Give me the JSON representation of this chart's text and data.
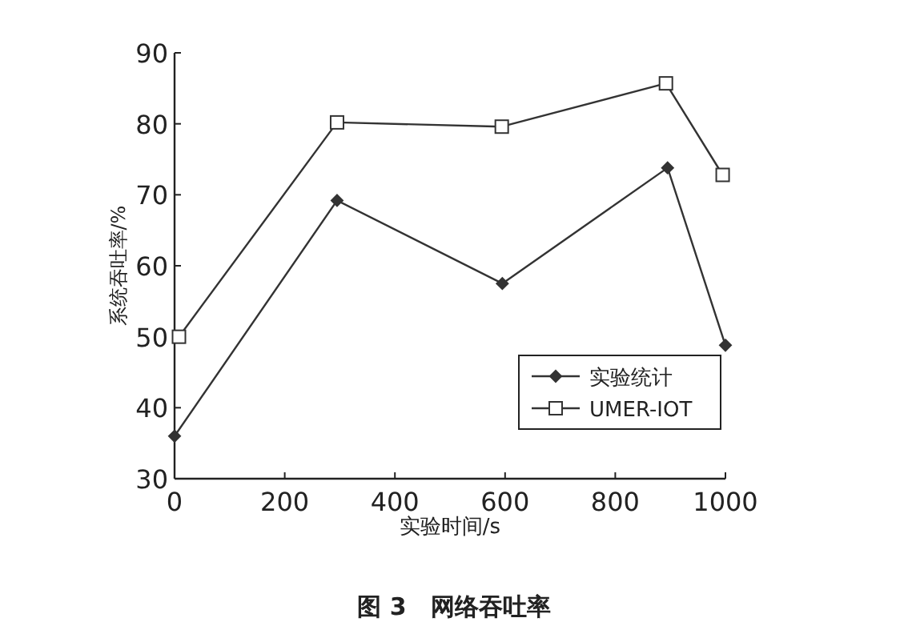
{
  "chart_data": {
    "type": "line",
    "xlabel": "实验时间/s",
    "ylabel": "系统吞吐率/%",
    "annotations": [
      "图 3　网络吞吐率"
    ],
    "xlim": [
      0,
      1000
    ],
    "xticks": [
      0,
      200,
      400,
      600,
      800,
      1000
    ],
    "ylim": [
      30,
      90
    ],
    "yticks": [
      30,
      40,
      50,
      60,
      70,
      80,
      90
    ],
    "legend": "bottom right",
    "grid": false,
    "series": [
      {
        "name": "实验统计",
        "color": "#333333",
        "marker": "diamond",
        "x": [
          0,
          295,
          595,
          895,
          1000
        ],
        "values": [
          36,
          69.2,
          57.5,
          73.8,
          48.8
        ]
      },
      {
        "name": "UMER-IOT",
        "color": "#333333",
        "marker": "square",
        "x": [
          8,
          295,
          594,
          892,
          995
        ],
        "values": [
          50,
          80.2,
          79.6,
          85.7,
          72.8
        ]
      }
    ]
  }
}
